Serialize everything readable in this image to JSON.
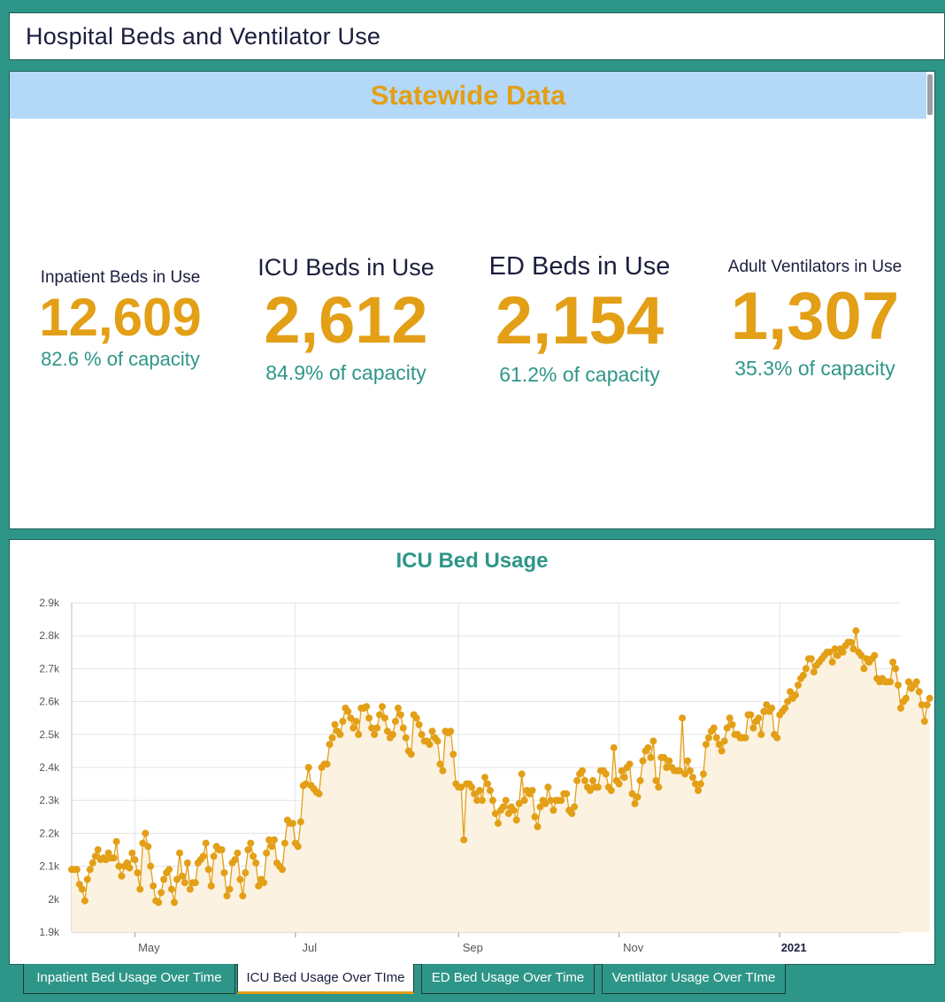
{
  "header": {
    "title": "Hospital Beds and Ventilator Use"
  },
  "banner": {
    "title": "Statewide Data"
  },
  "stats": [
    {
      "label": "Inpatient Beds in Use",
      "value": "12,609",
      "capacity": "82.6 % of capacity"
    },
    {
      "label": "ICU Beds in Use",
      "value": "2,612",
      "capacity": "84.9% of capacity"
    },
    {
      "label": "ED Beds in Use",
      "value": "2,154",
      "capacity": "61.2% of capacity"
    },
    {
      "label": "Adult Ventilators in Use",
      "value": "1,307",
      "capacity": "35.3% of capacity"
    }
  ],
  "colors": {
    "accent": "#e39f16",
    "teal": "#2e9688",
    "navy": "#1b1e3d",
    "banner": "#b3d8f8",
    "area": "#fbf2e1"
  },
  "chart_data": {
    "type": "area",
    "title": "ICU Bed Usage",
    "xlabel": "",
    "ylabel": "",
    "ylim": [
      1900,
      2900
    ],
    "yticks": [
      "1.9k",
      "2k",
      "2.1k",
      "2.2k",
      "2.3k",
      "2.4k",
      "2.5k",
      "2.6k",
      "2.7k",
      "2.8k",
      "2.9k"
    ],
    "xticks": [
      {
        "date": "2020-05-01",
        "label": "May",
        "bold": false
      },
      {
        "date": "2020-07-01",
        "label": "Jul",
        "bold": false
      },
      {
        "date": "2020-09-01",
        "label": "Sep",
        "bold": false
      },
      {
        "date": "2020-11-01",
        "label": "Nov",
        "bold": false
      },
      {
        "date": "2021-01-01",
        "label": "2021",
        "bold": true
      }
    ],
    "x_range": [
      "2020-04-07",
      "2021-02-16"
    ],
    "grid": true,
    "series": [
      {
        "name": "",
        "start_date": "2020-04-07",
        "values": [
          2090,
          2090,
          2090,
          2045,
          2030,
          1995,
          2060,
          2090,
          2110,
          2130,
          2150,
          2120,
          2125,
          2120,
          2140,
          2125,
          2125,
          2175,
          2100,
          2070,
          2100,
          2110,
          2095,
          2140,
          2120,
          2080,
          2030,
          2170,
          2200,
          2160,
          2100,
          2040,
          1995,
          1990,
          2020,
          2060,
          2080,
          2090,
          2030,
          1990,
          2060,
          2140,
          2070,
          2050,
          2110,
          2030,
          2050,
          2050,
          2110,
          2120,
          2130,
          2170,
          2090,
          2040,
          2130,
          2160,
          2150,
          2150,
          2080,
          2010,
          2030,
          2110,
          2120,
          2140,
          2060,
          2010,
          2080,
          2150,
          2170,
          2130,
          2110,
          2040,
          2060,
          2050,
          2140,
          2180,
          2160,
          2180,
          2110,
          2100,
          2090,
          2170,
          2240,
          2230,
          2230,
          2170,
          2160,
          2235,
          2345,
          2350,
          2400,
          2345,
          2335,
          2325,
          2320,
          2400,
          2410,
          2410,
          2470,
          2490,
          2530,
          2510,
          2500,
          2540,
          2580,
          2570,
          2550,
          2520,
          2540,
          2500,
          2580,
          2580,
          2585,
          2550,
          2520,
          2500,
          2520,
          2560,
          2585,
          2550,
          2510,
          2490,
          2500,
          2540,
          2580,
          2560,
          2520,
          2490,
          2450,
          2440,
          2560,
          2550,
          2530,
          2500,
          2480,
          2480,
          2470,
          2510,
          2490,
          2480,
          2410,
          2390,
          2510,
          2505,
          2510,
          2440,
          2350,
          2340,
          2340,
          2180,
          2350,
          2350,
          2340,
          2320,
          2300,
          2330,
          2300,
          2370,
          2350,
          2330,
          2300,
          2260,
          2230,
          2270,
          2280,
          2300,
          2260,
          2280,
          2270,
          2240,
          2290,
          2380,
          2300,
          2330,
          2320,
          2330,
          2250,
          2220,
          2280,
          2300,
          2290,
          2340,
          2300,
          2270,
          2300,
          2300,
          2300,
          2320,
          2320,
          2270,
          2260,
          2280,
          2360,
          2380,
          2390,
          2360,
          2340,
          2330,
          2360,
          2340,
          2340,
          2390,
          2390,
          2380,
          2340,
          2330,
          2460,
          2360,
          2350,
          2390,
          2370,
          2400,
          2410,
          2320,
          2290,
          2310,
          2360,
          2420,
          2450,
          2460,
          2430,
          2480,
          2360,
          2340,
          2430,
          2430,
          2400,
          2420,
          2400,
          2390,
          2390,
          2390,
          2550,
          2380,
          2420,
          2390,
          2370,
          2350,
          2330,
          2350,
          2380,
          2470,
          2490,
          2510,
          2520,
          2490,
          2470,
          2450,
          2480,
          2520,
          2550,
          2530,
          2500,
          2500,
          2490,
          2490,
          2490,
          2560,
          2560,
          2520,
          2540,
          2550,
          2500,
          2570,
          2590,
          2570,
          2580,
          2500,
          2490,
          2560,
          2570,
          2580,
          2600,
          2630,
          2610,
          2620,
          2650,
          2670,
          2680,
          2700,
          2730,
          2730,
          2690,
          2710,
          2720,
          2730,
          2740,
          2750,
          2750,
          2720,
          2760,
          2740,
          2760,
          2750,
          2770,
          2780,
          2780,
          2760,
          2815,
          2750,
          2740,
          2700,
          2730,
          2720,
          2730,
          2740,
          2670,
          2660,
          2670,
          2660,
          2660,
          2660,
          2720,
          2700,
          2650,
          2580,
          2600,
          2610,
          2660,
          2640,
          2650,
          2660,
          2630,
          2590,
          2540,
          2590,
          2610
        ]
      }
    ]
  },
  "tabs": [
    {
      "label": "Inpatient Bed Usage Over Time",
      "active": false
    },
    {
      "label": "ICU Bed Usage Over TIme",
      "active": true
    },
    {
      "label": "ED Bed Usage Over Time",
      "active": false
    },
    {
      "label": "Ventilator Usage Over TIme",
      "active": false
    }
  ]
}
